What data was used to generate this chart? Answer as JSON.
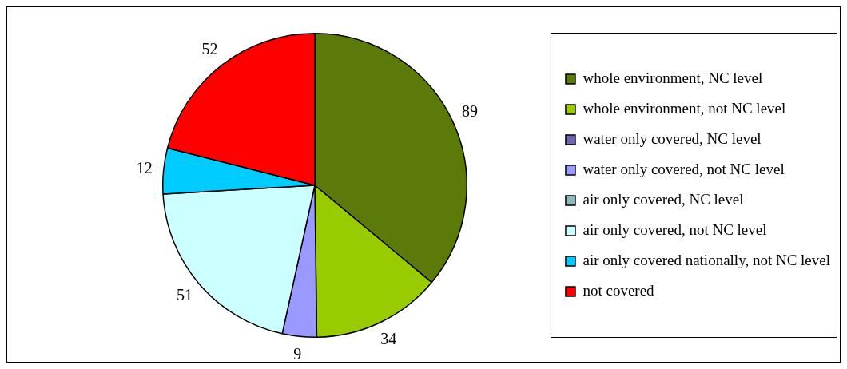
{
  "chart_data": {
    "type": "pie",
    "categories": [
      "whole environment, NC level",
      "whole environment, not NC level",
      "water only covered, NC level",
      "water only covered, not NC level",
      "air only covered, NC level",
      "air only covered, not NC level",
      "air only covered nationally, not NC level",
      "not covered"
    ],
    "values": [
      89,
      34,
      0,
      9,
      0,
      51,
      12,
      52
    ],
    "colors": [
      "#5c7a0a",
      "#99cc00",
      "#6a66b0",
      "#9999ff",
      "#8fb8b8",
      "#ccffff",
      "#00ccff",
      "#ff0000"
    ],
    "value_labels": [
      "89",
      "34",
      null,
      "9",
      null,
      "51",
      "12",
      "52"
    ],
    "legend": "right"
  }
}
